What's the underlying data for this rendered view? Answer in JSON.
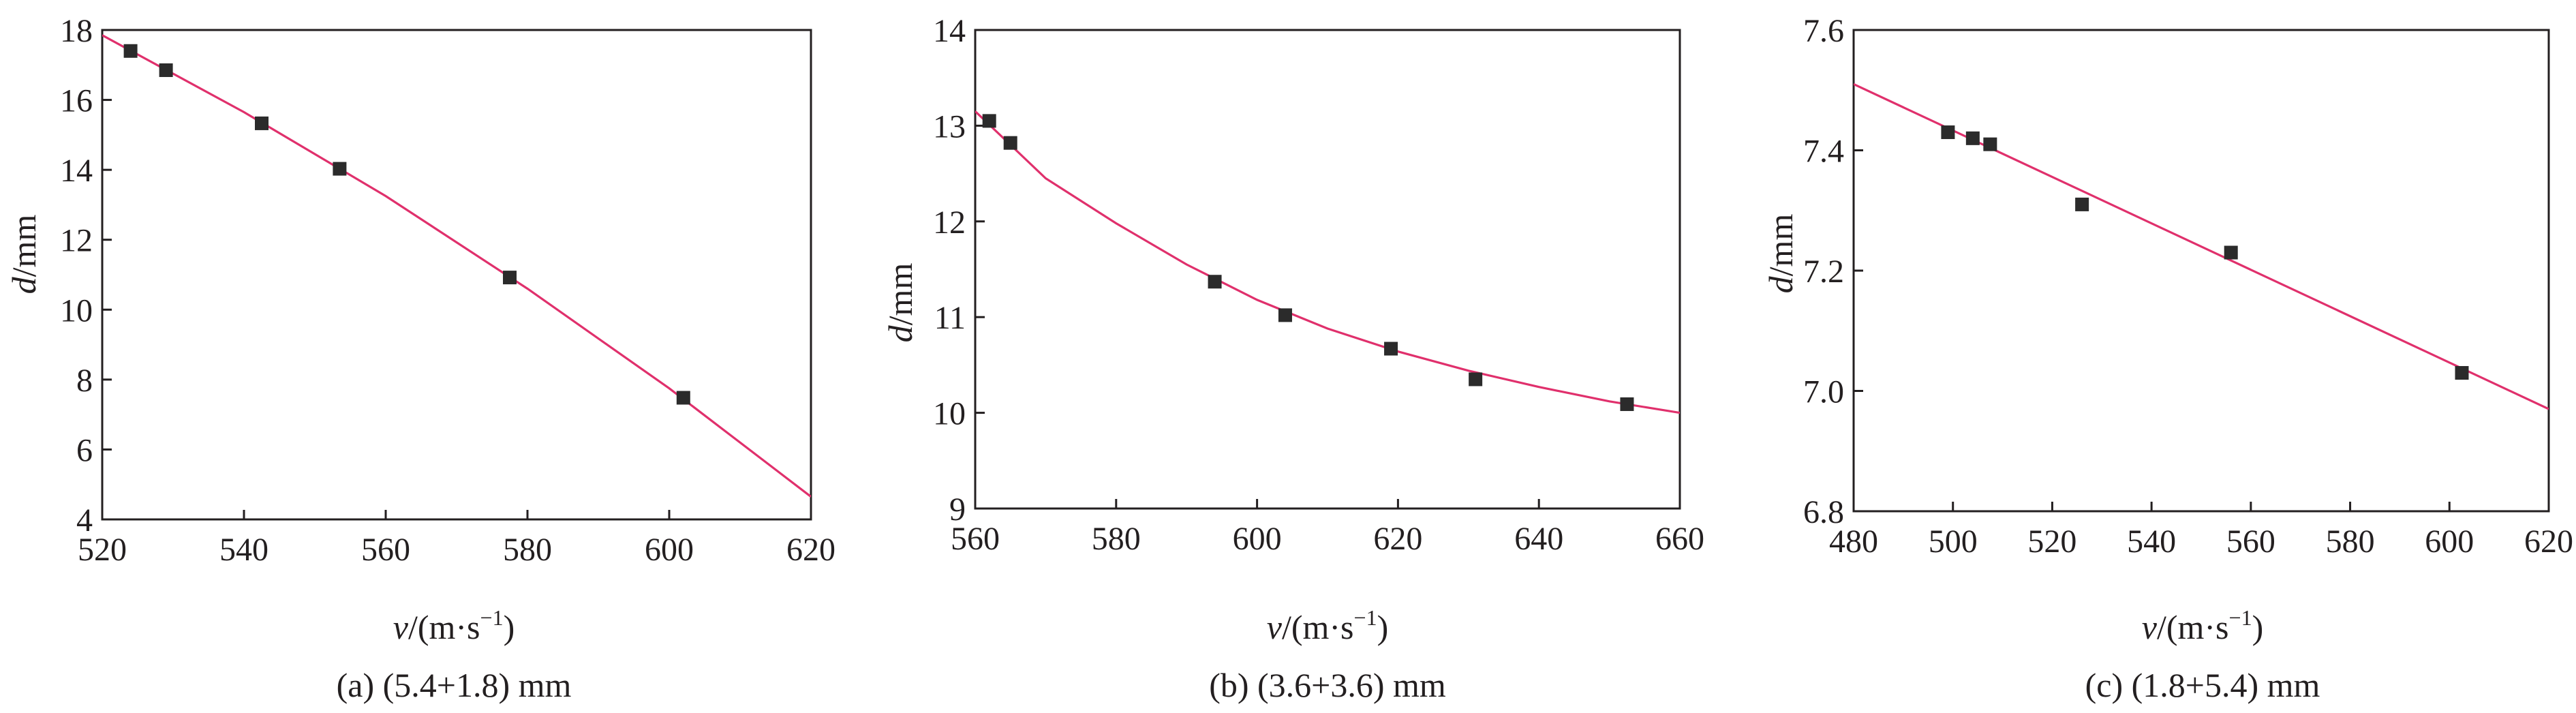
{
  "chart_data": [
    {
      "type": "scatter",
      "caption": "(a) (5.4+1.8) mm",
      "xlabel_var": "v",
      "xlabel_unit": "/(m·s",
      "xlabel_exp": "−1",
      "xlabel_close": ")",
      "ylabel_var": "d",
      "ylabel_unit": "/mm",
      "xlim": [
        520,
        620
      ],
      "ylim": [
        4,
        18
      ],
      "xticks": [
        520,
        540,
        560,
        580,
        600,
        620
      ],
      "yticks": [
        4,
        6,
        8,
        10,
        12,
        14,
        16,
        18
      ],
      "ytick_decimals": 0,
      "series": [
        {
          "points": [
            [
              524,
              17.4
            ],
            [
              529,
              16.85
            ],
            [
              542.5,
              15.33
            ],
            [
              553.5,
              14.03
            ],
            [
              577.5,
              10.92
            ],
            [
              602,
              7.48
            ]
          ],
          "fit": [
            [
              520,
              17.85
            ],
            [
              540,
              15.65
            ],
            [
              560,
              13.25
            ],
            [
              580,
              10.6
            ],
            [
              600,
              7.75
            ],
            [
              620,
              4.65
            ]
          ]
        }
      ],
      "colors": {
        "fit": "#e0306c",
        "marker": "#2b2b2b"
      }
    },
    {
      "type": "scatter",
      "caption": "(b) (3.6+3.6) mm",
      "xlabel_var": "v",
      "xlabel_unit": "/(m·s",
      "xlabel_exp": "−1",
      "xlabel_close": ")",
      "ylabel_var": "d",
      "ylabel_unit": "/mm",
      "xlim": [
        560,
        660
      ],
      "ylim": [
        9,
        14
      ],
      "xticks": [
        560,
        580,
        600,
        620,
        640,
        660
      ],
      "yticks": [
        9,
        10,
        11,
        12,
        13,
        14
      ],
      "ytick_decimals": 0,
      "series": [
        {
          "points": [
            [
              562,
              13.05
            ],
            [
              565,
              12.82
            ],
            [
              594,
              11.37
            ],
            [
              604,
              11.02
            ],
            [
              619,
              10.67
            ],
            [
              631,
              10.35
            ],
            [
              652.5,
              10.09
            ]
          ],
          "fit": [
            [
              560,
              13.15
            ],
            [
              570,
              12.45
            ],
            [
              580,
              11.98
            ],
            [
              590,
              11.55
            ],
            [
              600,
              11.18
            ],
            [
              610,
              10.88
            ],
            [
              620,
              10.64
            ],
            [
              630,
              10.44
            ],
            [
              640,
              10.27
            ],
            [
              650,
              10.12
            ],
            [
              660,
              10.0
            ]
          ]
        }
      ],
      "colors": {
        "fit": "#e0306c",
        "marker": "#2b2b2b"
      }
    },
    {
      "type": "scatter",
      "caption": "(c) (1.8+5.4) mm",
      "xlabel_var": "v",
      "xlabel_unit": "/(m·s",
      "xlabel_exp": "−1",
      "xlabel_close": ")",
      "ylabel_var": "d",
      "ylabel_unit": "/mm",
      "xlim": [
        480,
        620
      ],
      "ylim": [
        6.8,
        7.6
      ],
      "xticks": [
        480,
        500,
        520,
        540,
        560,
        580,
        600,
        620
      ],
      "yticks": [
        6.8,
        7.0,
        7.2,
        7.4,
        7.6
      ],
      "ytick_decimals": 1,
      "series": [
        {
          "points": [
            [
              499,
              7.43
            ],
            [
              504,
              7.42
            ],
            [
              507.5,
              7.41
            ],
            [
              526,
              7.31
            ],
            [
              556,
              7.23
            ],
            [
              602.5,
              7.03
            ]
          ],
          "fit": [
            [
              480,
              7.51
            ],
            [
              620,
              6.97
            ]
          ]
        }
      ],
      "colors": {
        "fit": "#e0306c",
        "marker": "#2b2b2b"
      }
    }
  ]
}
